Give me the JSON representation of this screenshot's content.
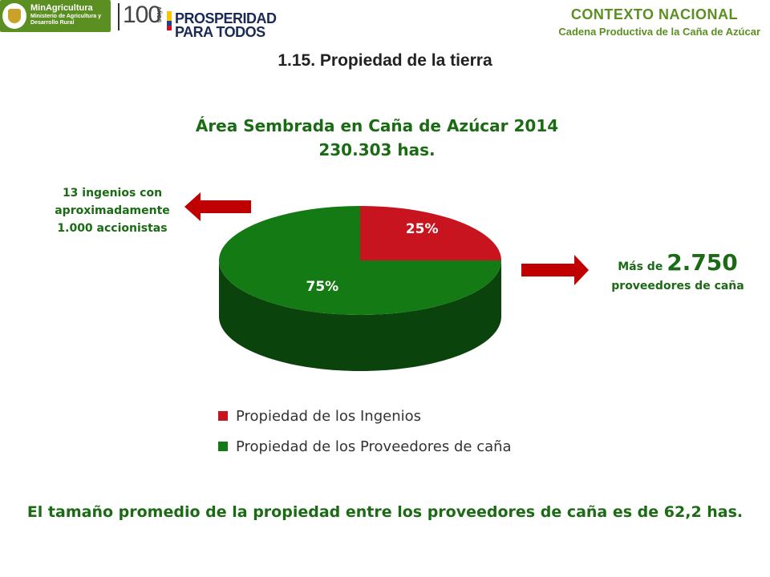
{
  "header": {
    "ministry_name": "MinAgricultura",
    "ministry_subtitle": "Ministerio de Agricultura y Desarrollo Rural",
    "anniversary_number": "100",
    "anniversary_word": "AÑOS",
    "slogan_line1": "PROSPERIDAD",
    "slogan_line2": "PARA TODOS",
    "context_title": "CONTEXTO NACIONAL",
    "context_subtitle": "Cadena Productiva de la Caña de Azúcar",
    "colors": {
      "brand_green": "#5b8f22"
    }
  },
  "page": {
    "title": "1.15. Propiedad de la tierra"
  },
  "chart_data": {
    "type": "pie",
    "title": "Área Sembrada en Caña de Azúcar 2014",
    "subtitle": "230.303 has.",
    "slices": [
      {
        "label": "Propiedad de los Ingenios",
        "value": 25,
        "display": "25%",
        "color": "#c8141e"
      },
      {
        "label": "Propiedad de los Proveedores de caña",
        "value": 75,
        "display": "75%",
        "color": "#137a14"
      }
    ],
    "legend_position": "bottom",
    "three_d": true
  },
  "annotations": {
    "left_lines": [
      "13 ingenios con",
      "aproximadamente",
      "1.000 accionistas"
    ],
    "right_prefix": "Más de",
    "right_number": "2.750",
    "right_suffix": "proveedores de caña",
    "arrow_color": "#c00000"
  },
  "footer": {
    "note": "El tamaño promedio de la propiedad entre los proveedores de caña es de 62,2 has."
  }
}
